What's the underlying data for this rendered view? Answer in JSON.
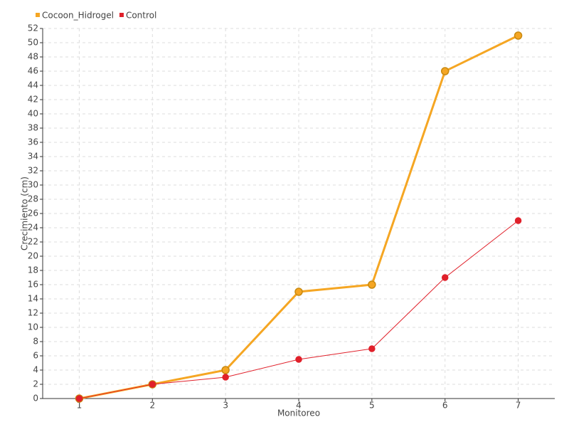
{
  "chart_data": {
    "type": "line",
    "x": [
      1,
      2,
      3,
      4,
      5,
      6,
      7
    ],
    "xlim": [
      0.5,
      7.5
    ],
    "xticks": [
      1,
      2,
      3,
      4,
      5,
      6,
      7
    ],
    "ylim": [
      0,
      52
    ],
    "yticks": [
      0,
      2,
      4,
      6,
      8,
      10,
      12,
      14,
      16,
      18,
      20,
      22,
      24,
      26,
      28,
      30,
      32,
      34,
      36,
      38,
      40,
      42,
      44,
      46,
      48,
      50,
      52
    ],
    "xlabel": "Monitoreo",
    "ylabel": "Crecimiento (cm)",
    "grid": true,
    "legend": "top-left",
    "series": [
      {
        "name": "Cocoon_Hidrogel",
        "color": "#f5a623",
        "values": [
          0,
          2,
          4,
          15,
          16,
          46,
          51
        ]
      },
      {
        "name": "Control",
        "color": "#e0202a",
        "values": [
          0,
          2,
          3,
          5.5,
          7,
          17,
          25
        ]
      }
    ]
  }
}
